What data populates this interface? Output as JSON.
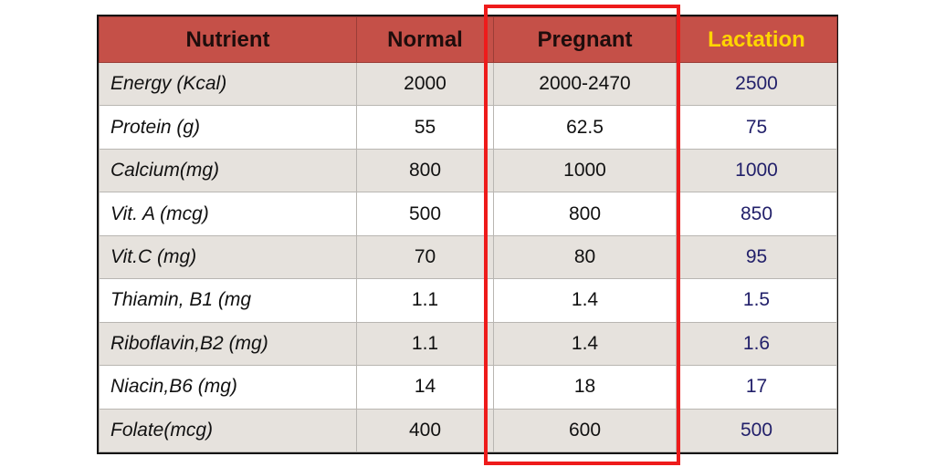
{
  "headers": {
    "nutrient": "Nutrient",
    "normal": "Normal",
    "pregnant": "Pregnant",
    "lactation": "Lactation"
  },
  "rows": [
    {
      "nutrient": "Energy (Kcal)",
      "normal": "2000",
      "pregnant": "2000-2470",
      "lactation": "2500"
    },
    {
      "nutrient": "Protein (g)",
      "normal": "55",
      "pregnant": "62.5",
      "lactation": "75"
    },
    {
      "nutrient": "Calcium(mg)",
      "normal": "800",
      "pregnant": "1000",
      "lactation": "1000"
    },
    {
      "nutrient": "Vit. A (mcg)",
      "normal": "500",
      "pregnant": "800",
      "lactation": "850"
    },
    {
      "nutrient": "Vit.C (mg)",
      "normal": "70",
      "pregnant": "80",
      "lactation": "95"
    },
    {
      "nutrient": "Thiamin, B1 (mg",
      "normal": "1.1",
      "pregnant": "1.4",
      "lactation": "1.5"
    },
    {
      "nutrient": "Riboflavin,B2 (mg)",
      "normal": "1.1",
      "pregnant": "1.4",
      "lactation": "1.6"
    },
    {
      "nutrient": "Niacin,B6 (mg)",
      "normal": "14",
      "pregnant": "18",
      "lactation": "17"
    },
    {
      "nutrient": "Folate(mcg)",
      "normal": "400",
      "pregnant": "600",
      "lactation": "500"
    }
  ],
  "colors": {
    "header_bg": "#c55048",
    "header_text": "#1e0d0c",
    "lactation_header_text": "#ffd500",
    "lactation_value_text": "#22206a",
    "stripe_bg": "#e6e2dd",
    "highlight_border": "#ee1b1b"
  }
}
